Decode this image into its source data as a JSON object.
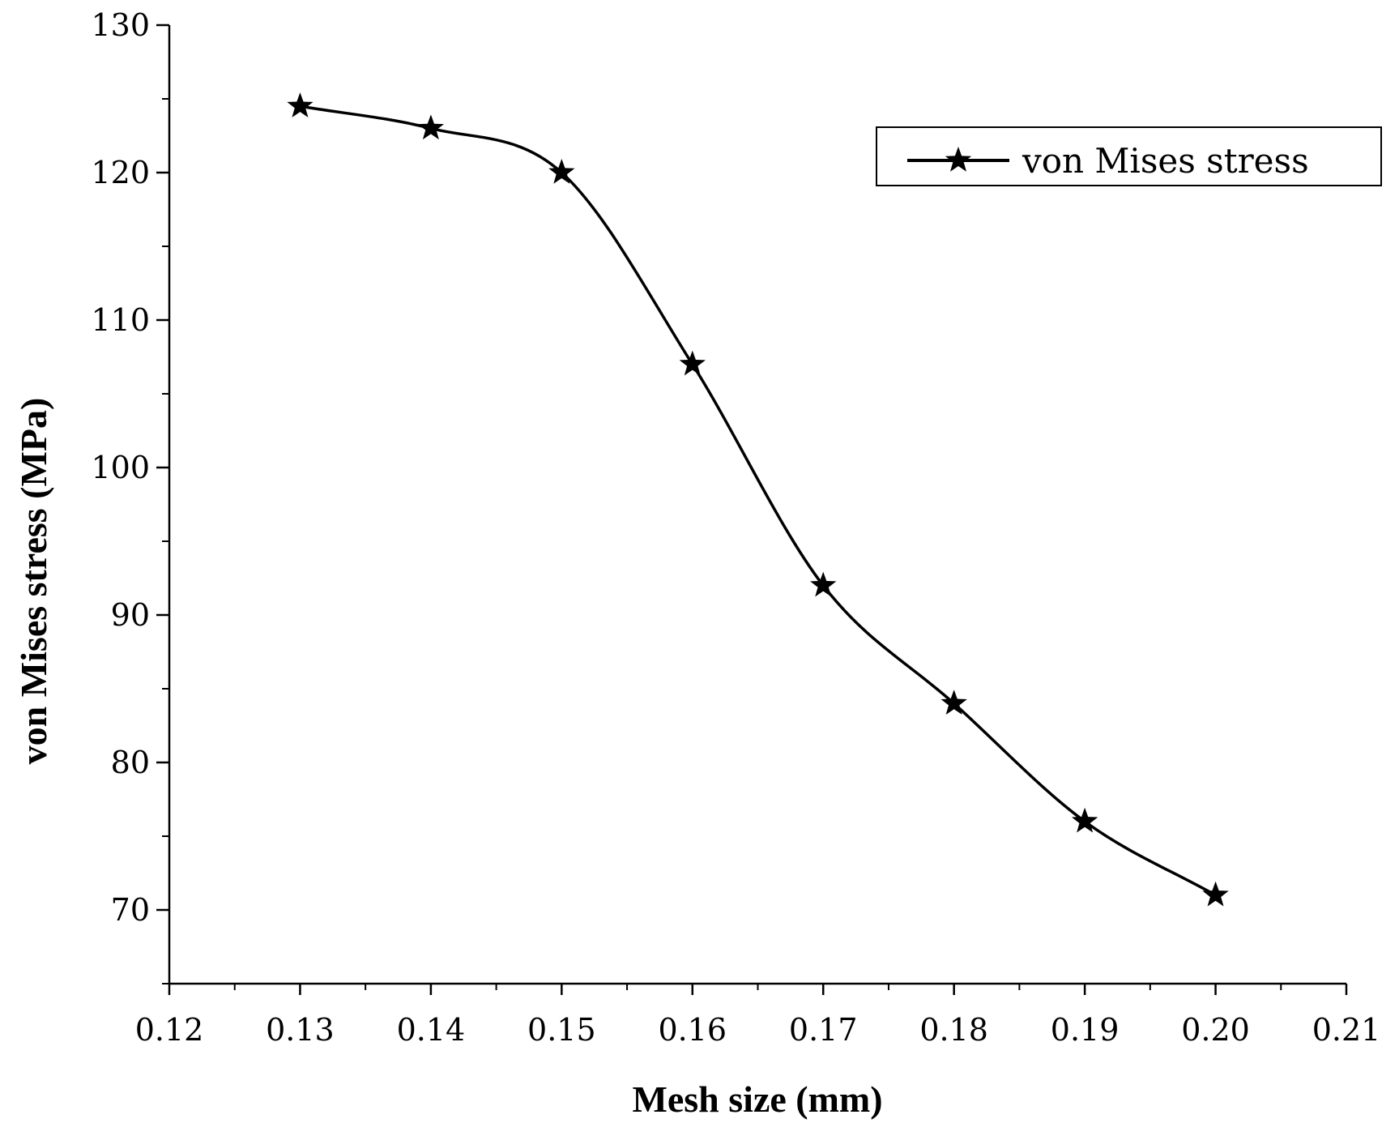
{
  "chart_data": {
    "type": "line",
    "title": "",
    "xlabel": "Mesh size (mm)",
    "ylabel": "von Mises stress (MPa)",
    "xlim": [
      0.12,
      0.21
    ],
    "ylim": [
      65,
      130
    ],
    "x_ticks": [
      "0.12",
      "0.13",
      "0.14",
      "0.15",
      "0.16",
      "0.17",
      "0.18",
      "0.19",
      "0.20",
      "0.21"
    ],
    "y_ticks": [
      "70",
      "80",
      "90",
      "100",
      "110",
      "120",
      "130"
    ],
    "legend_position": "top-right",
    "grid": false,
    "series": [
      {
        "name": "von Mises stress",
        "marker": "star",
        "color": "#000000",
        "x": [
          0.13,
          0.14,
          0.15,
          0.16,
          0.17,
          0.18,
          0.19,
          0.2
        ],
        "y": [
          124.5,
          123,
          120,
          107,
          92,
          84,
          76,
          71
        ]
      }
    ]
  }
}
